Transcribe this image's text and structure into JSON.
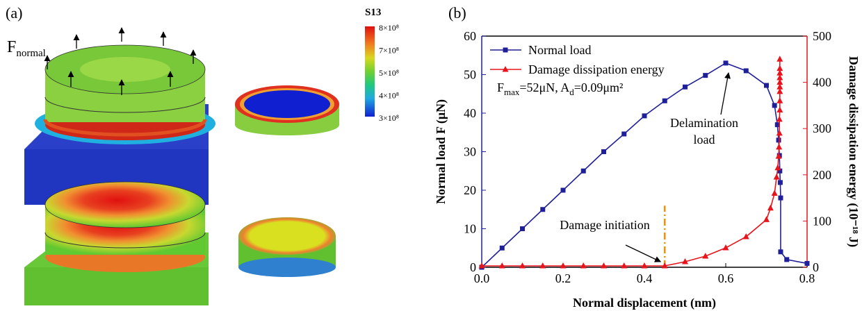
{
  "figure_a": {
    "panel_label": "(a)",
    "force_label": [
      "F",
      "normal"
    ],
    "colorbar_title": "S13",
    "colorbar_labels": [
      "8×10⁸",
      "7×10⁸",
      "5×10⁸",
      "4×10⁸",
      "3×10⁸"
    ]
  },
  "chart_data": {
    "type": "line",
    "panel_label": "(b)",
    "xlabel": "Normal displacement (nm)",
    "ylabel": "Normal load F (μN)",
    "y2label": "Damage dissipation energy (10⁻¹⁸ J)",
    "xlim": [
      0,
      0.8
    ],
    "xticks": [
      {
        "value": 0,
        "label": "0.0"
      },
      0.2,
      0.4,
      0.6,
      0.8
    ],
    "ylim": [
      0,
      60
    ],
    "yticks": [
      0,
      10,
      20,
      30,
      40,
      50,
      60
    ],
    "y2lim": [
      0,
      500
    ],
    "y2ticks": [
      0,
      100,
      200,
      300,
      400,
      500
    ],
    "legend": "upper left",
    "series": [
      {
        "name": "Normal load",
        "color": "#1f1f99",
        "marker": "square",
        "x": [
          0,
          0.05,
          0.1,
          0.15,
          0.2,
          0.25,
          0.3,
          0.35,
          0.4,
          0.45,
          0.5,
          0.55,
          0.6,
          0.65,
          0.7,
          0.72,
          0.727,
          0.73,
          0.732,
          0.733,
          0.734,
          0.735,
          0.735,
          0.75,
          0.8
        ],
        "values": [
          0,
          5,
          10,
          15,
          20,
          25,
          30,
          34.6,
          39.3,
          43.2,
          46.8,
          49.8,
          53,
          51,
          47.2,
          42,
          37,
          33,
          29,
          25,
          22,
          18,
          4,
          2,
          1
        ]
      },
      {
        "name": "Damage dissipation energy",
        "color": "#e8141b",
        "marker": "triangle",
        "axis": "y2",
        "x": [
          0,
          0.05,
          0.1,
          0.15,
          0.2,
          0.25,
          0.3,
          0.35,
          0.4,
          0.45,
          0.5,
          0.55,
          0.6,
          0.65,
          0.7,
          0.71,
          0.72,
          0.725,
          0.728,
          0.73,
          0.731,
          0.732,
          0.732,
          0.733,
          0.733,
          0.733,
          0.733,
          0.733,
          0.733,
          0.733,
          0.733,
          0.733
        ],
        "values": [
          3,
          3,
          3,
          3,
          3,
          3,
          3,
          3,
          3,
          3,
          12,
          24,
          42,
          66,
          103,
          128,
          160,
          195,
          215,
          240,
          260,
          290,
          320,
          340,
          360,
          380,
          390,
          400,
          410,
          420,
          430,
          450
        ]
      }
    ],
    "vline": {
      "x": 0.45,
      "y": [
        0,
        16
      ],
      "color": "#ff8c00"
    },
    "annotations": [
      {
        "text": [
          "F",
          "max",
          "=52μN, A",
          "d",
          "=0.09μm²"
        ]
      },
      {
        "text": [
          "Delamination",
          "load"
        ],
        "x": 0.6,
        "y": 53
      },
      {
        "text": [
          "Damage initiation"
        ],
        "x": 0.45,
        "y": 0
      }
    ]
  }
}
